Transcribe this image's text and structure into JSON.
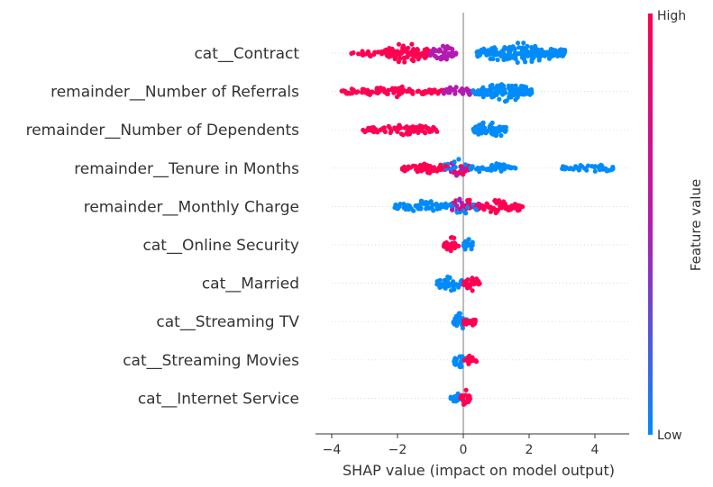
{
  "chart_data": {
    "type": "scatter",
    "subtype": "shap-beeswarm",
    "xlabel": "SHAP value (impact on model output)",
    "xlim": [
      -4.3,
      4.9
    ],
    "x_ticks": [
      -4,
      -2,
      0,
      2,
      4
    ],
    "x_tick_labels": [
      "−4",
      "−2",
      "0",
      "2",
      "4"
    ],
    "grid": false,
    "colorbar": {
      "label": "Feature value",
      "high_label": "High",
      "low_label": "Low",
      "high_color": "#ff0052",
      "low_color": "#008bfb",
      "mid_color": "#b31bb0"
    },
    "features": [
      {
        "name": "cat__Contract",
        "segments": [
          {
            "from": -3.4,
            "to": -2.4,
            "feature_value": "high",
            "density": 0.25
          },
          {
            "from": -2.4,
            "to": -1.0,
            "feature_value": "high",
            "density": 1.0
          },
          {
            "from": -1.0,
            "to": -0.2,
            "feature_value": "mid",
            "density": 0.8
          },
          {
            "from": 0.4,
            "to": 3.1,
            "feature_value": "low",
            "density": 1.0
          }
        ]
      },
      {
        "name": "remainder__Number of Referrals",
        "segments": [
          {
            "from": -3.7,
            "to": -0.6,
            "feature_value": "high",
            "density": 0.45
          },
          {
            "from": -0.6,
            "to": 0.3,
            "feature_value": "mid",
            "density": 0.5
          },
          {
            "from": 0.3,
            "to": 2.1,
            "feature_value": "low",
            "density": 1.0
          }
        ]
      },
      {
        "name": "remainder__Number of Dependents",
        "segments": [
          {
            "from": -3.1,
            "to": -0.7,
            "feature_value": "high",
            "density": 0.45
          },
          {
            "from": 0.3,
            "to": 1.3,
            "feature_value": "low",
            "density": 1.0
          }
        ]
      },
      {
        "name": "remainder__Tenure in Months",
        "segments": [
          {
            "from": -1.9,
            "to": -0.6,
            "feature_value": "high",
            "density": 0.6
          },
          {
            "from": -0.6,
            "to": 0.2,
            "feature_value": "mixed",
            "density": 1.0
          },
          {
            "from": 0.2,
            "to": 1.6,
            "feature_value": "low",
            "density": 0.45
          },
          {
            "from": 3.0,
            "to": 4.6,
            "feature_value": "low",
            "density": 0.35
          }
        ]
      },
      {
        "name": "remainder__Monthly Charge",
        "segments": [
          {
            "from": -2.1,
            "to": -0.4,
            "feature_value": "low",
            "density": 0.55
          },
          {
            "from": -0.4,
            "to": 0.5,
            "feature_value": "mixed",
            "density": 1.0
          },
          {
            "from": 0.5,
            "to": 1.8,
            "feature_value": "high",
            "density": 0.75
          }
        ]
      },
      {
        "name": "cat__Online Security",
        "segments": [
          {
            "from": -0.6,
            "to": -0.1,
            "feature_value": "high",
            "density": 0.9
          },
          {
            "from": 0.0,
            "to": 0.3,
            "feature_value": "low",
            "density": 1.0
          }
        ]
      },
      {
        "name": "cat__Married",
        "segments": [
          {
            "from": -0.8,
            "to": 0.0,
            "feature_value": "low",
            "density": 0.8
          },
          {
            "from": 0.0,
            "to": 0.5,
            "feature_value": "high",
            "density": 0.9
          }
        ]
      },
      {
        "name": "cat__Streaming TV",
        "segments": [
          {
            "from": -0.3,
            "to": 0.1,
            "feature_value": "low",
            "density": 0.9
          },
          {
            "from": 0.0,
            "to": 0.4,
            "feature_value": "high",
            "density": 0.7
          }
        ]
      },
      {
        "name": "cat__Streaming Movies",
        "segments": [
          {
            "from": -0.3,
            "to": 0.1,
            "feature_value": "low",
            "density": 0.9
          },
          {
            "from": 0.0,
            "to": 0.4,
            "feature_value": "high",
            "density": 0.6
          }
        ]
      },
      {
        "name": "cat__Internet Service",
        "segments": [
          {
            "from": -0.4,
            "to": 0.0,
            "feature_value": "low",
            "density": 0.7
          },
          {
            "from": -0.1,
            "to": 0.2,
            "feature_value": "high",
            "density": 0.9
          }
        ]
      }
    ]
  }
}
